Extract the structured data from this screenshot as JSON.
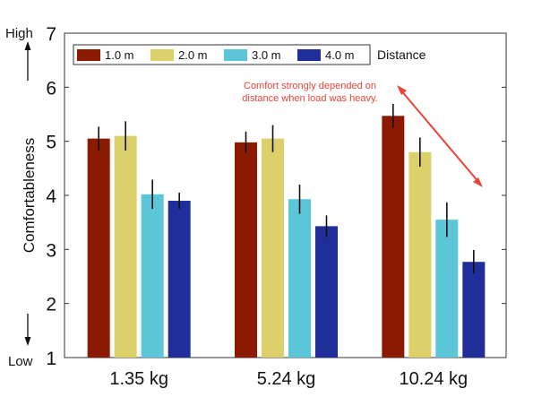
{
  "chart_data": {
    "type": "bar",
    "ylabel": "Comfortableness",
    "y_high_label": "High",
    "y_low_label": "Low",
    "ylim": [
      1,
      7
    ],
    "yticks": [
      1,
      2,
      3,
      4,
      5,
      6,
      7
    ],
    "categories": [
      "1.35 kg",
      "5.24 kg",
      "10.24 kg"
    ],
    "legend_title": "Distance",
    "legend_position": "top",
    "series": [
      {
        "name": "1.0 m",
        "color": "#8b1a00",
        "values": [
          5.05,
          4.98,
          5.47
        ],
        "errors": [
          0.22,
          0.2,
          0.22
        ]
      },
      {
        "name": "2.0 m",
        "color": "#dcd06a",
        "values": [
          5.1,
          5.05,
          4.8
        ],
        "errors": [
          0.27,
          0.25,
          0.27
        ]
      },
      {
        "name": "3.0 m",
        "color": "#5cc6d9",
        "values": [
          4.02,
          3.93,
          3.55
        ],
        "errors": [
          0.27,
          0.27,
          0.32
        ]
      },
      {
        "name": "4.0 m",
        "color": "#1f2e9a",
        "values": [
          3.9,
          3.43,
          2.77
        ],
        "errors": [
          0.15,
          0.2,
          0.22
        ]
      }
    ],
    "annotation": {
      "line1": "Comfort strongly depended on",
      "line2": "distance when load was heavy.",
      "color": "#e8443a"
    }
  }
}
